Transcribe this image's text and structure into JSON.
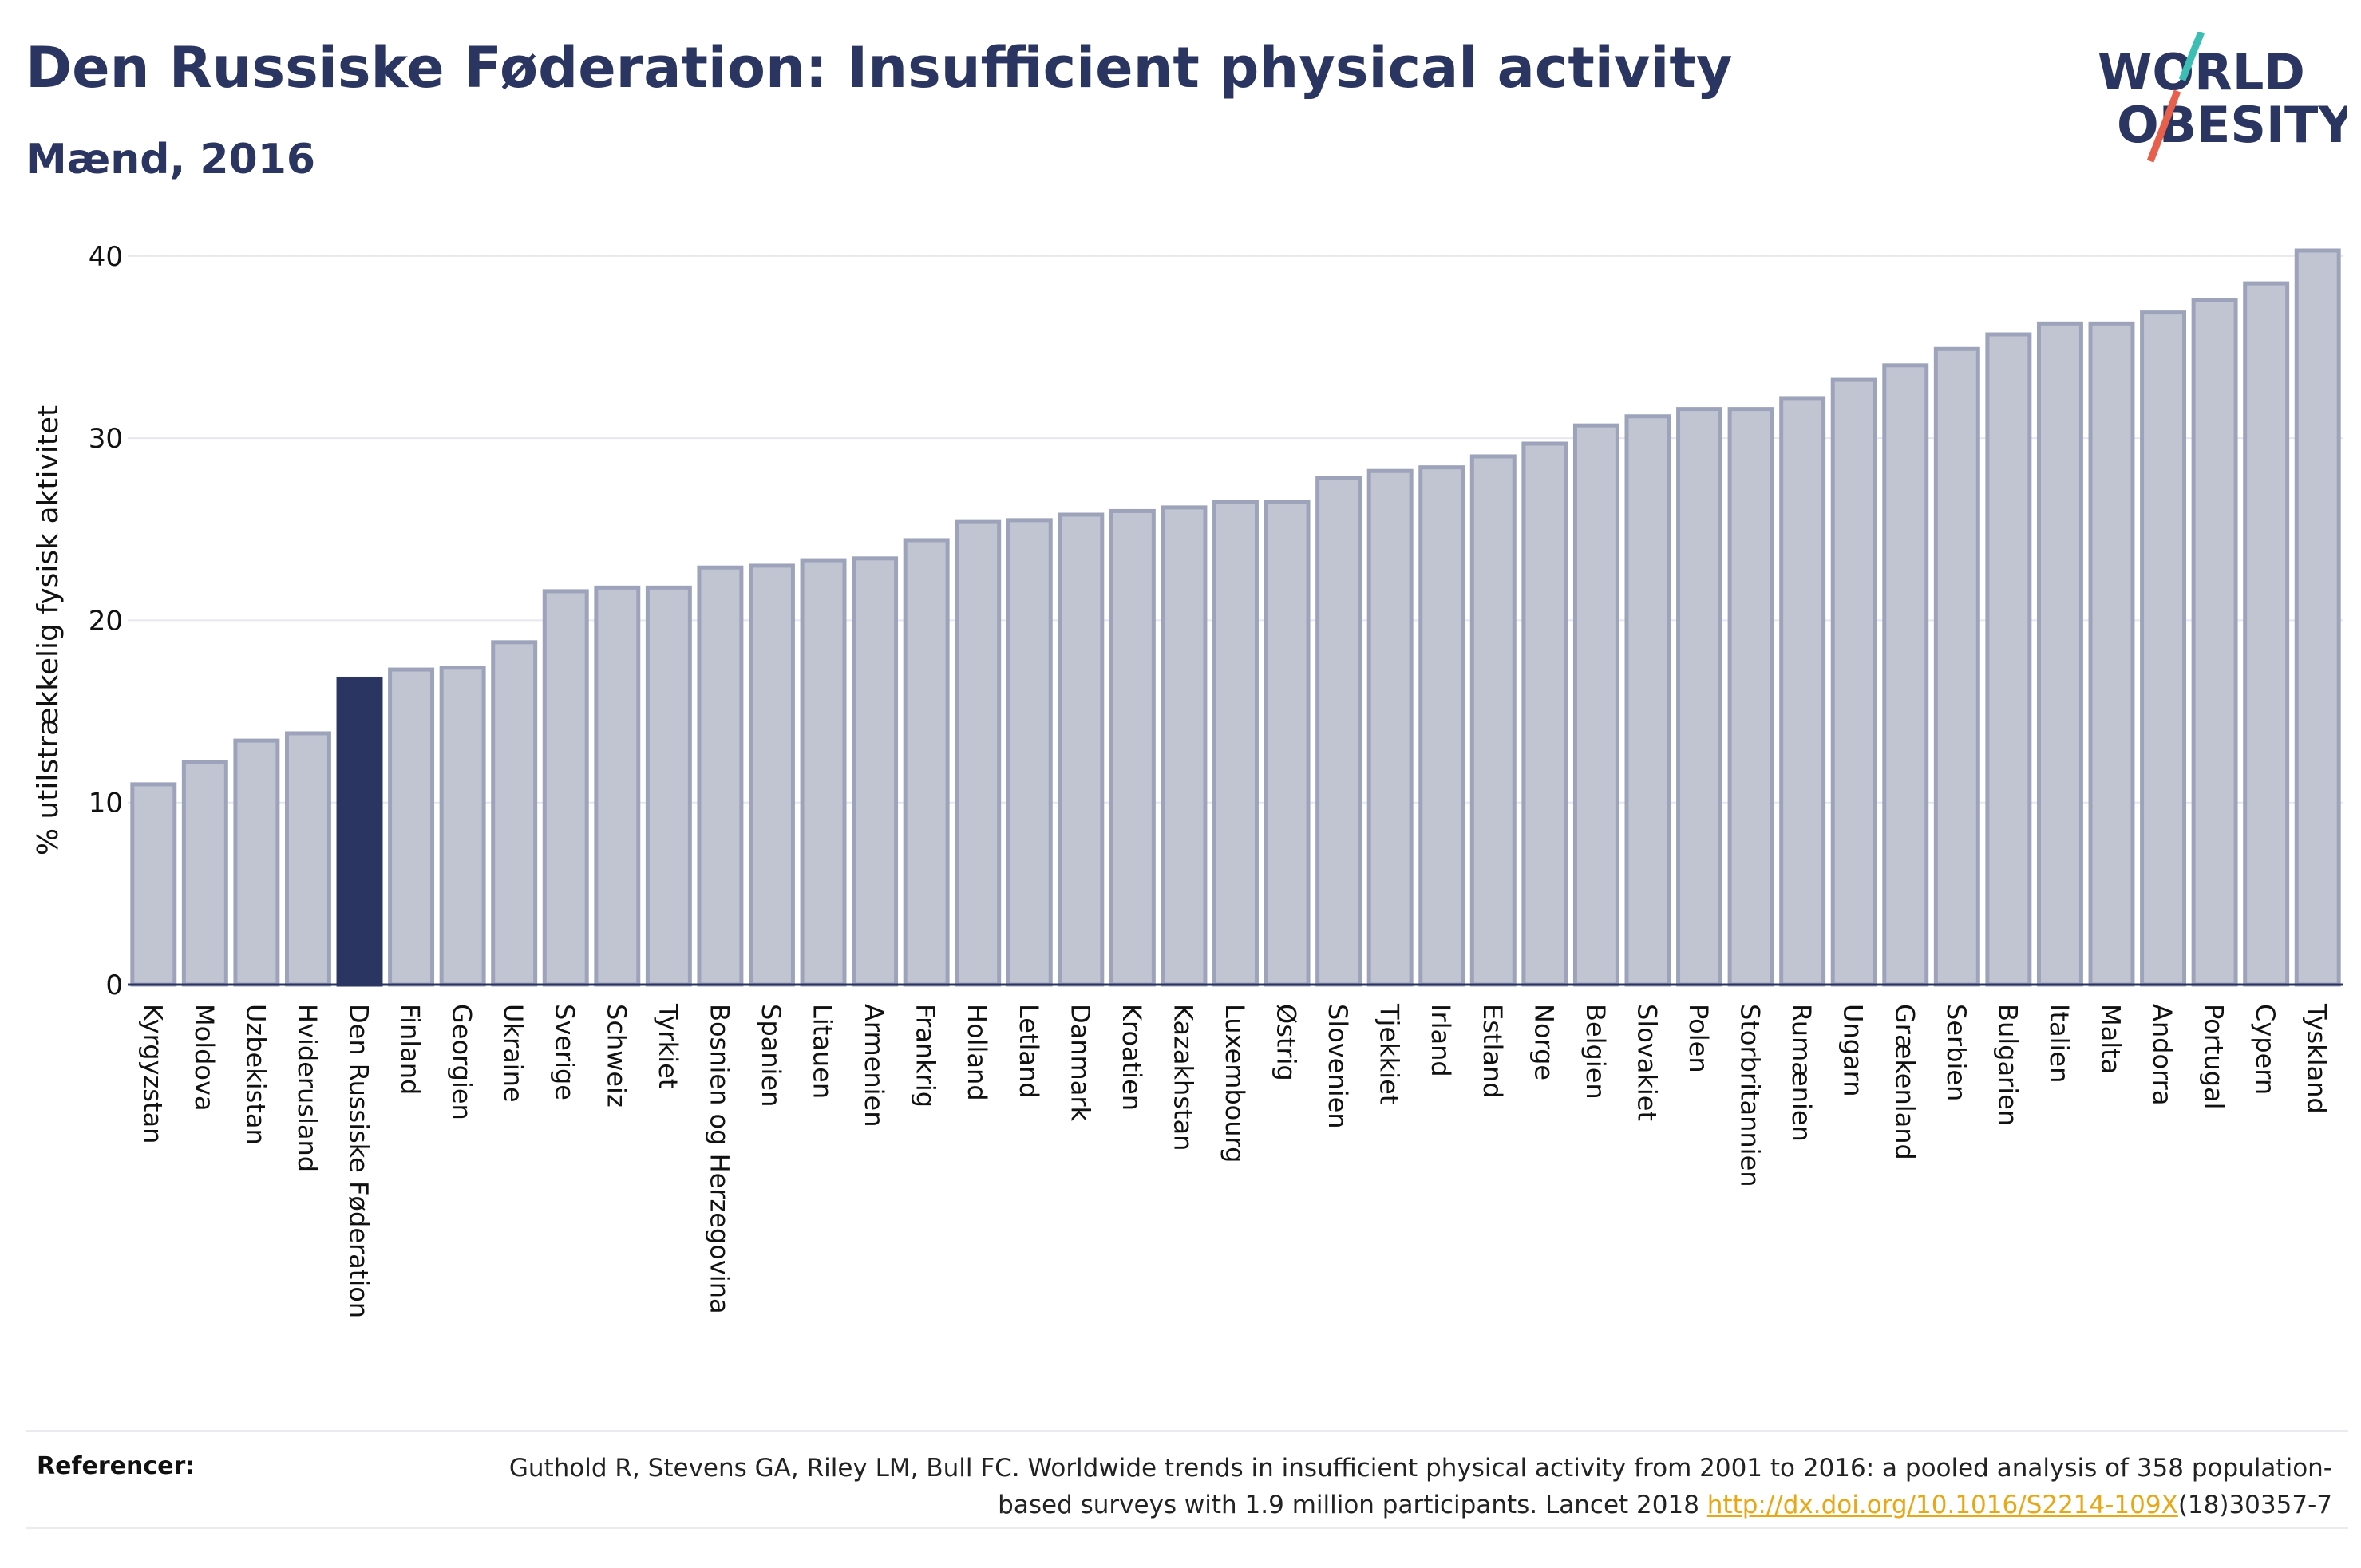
{
  "header": {
    "title": "Den Russiske Føderation: Insufficient physical activity",
    "subtitle": "Mænd, 2016"
  },
  "logo": {
    "line1": "WORLD",
    "line2": "OBESITY"
  },
  "colors": {
    "highlight": "#2a3561",
    "bar_fill": "#c1c5d2",
    "bar_stroke": "#9da3ba",
    "link": "#e8a713",
    "logo_teal": "#3bbfb5",
    "logo_red": "#e8604c"
  },
  "chart_data": {
    "type": "bar",
    "ylabel": "% utilstrækkelig fysisk aktivitet",
    "ylim": [
      0,
      40.5
    ],
    "yticks": [
      0,
      10,
      20,
      30,
      40
    ],
    "grid": true,
    "highlight_category": "Den Russiske Føderation",
    "categories": [
      "Kyrgyzstan",
      "Moldova",
      "Uzbekistan",
      "Hviderusland",
      "Den Russiske Føderation",
      "Finland",
      "Georgien",
      "Ukraine",
      "Sverige",
      "Schweiz",
      "Tyrkiet",
      "Bosnien og Herzegovina",
      "Spanien",
      "Litauen",
      "Armenien",
      "Frankrig",
      "Holland",
      "Letland",
      "Danmark",
      "Kroatien",
      "Kazakhstan",
      "Luxembourg",
      "Østrig",
      "Slovenien",
      "Tjekkiet",
      "Irland",
      "Estland",
      "Norge",
      "Belgien",
      "Slovakiet",
      "Polen",
      "Storbritannien",
      "Rumænien",
      "Ungarn",
      "Grækenland",
      "Serbien",
      "Bulgarien",
      "Italien",
      "Malta",
      "Andorra",
      "Portugal",
      "Cypern",
      "Tyskland"
    ],
    "values": [
      11.0,
      12.2,
      13.4,
      13.8,
      16.8,
      17.3,
      17.4,
      18.8,
      21.6,
      21.8,
      21.8,
      22.9,
      23.0,
      23.3,
      23.4,
      24.4,
      25.4,
      25.5,
      25.8,
      26.0,
      26.2,
      26.5,
      26.5,
      27.8,
      28.2,
      28.4,
      29.0,
      29.7,
      30.7,
      31.2,
      31.6,
      31.6,
      32.2,
      33.2,
      34.0,
      34.9,
      35.7,
      36.3,
      36.3,
      36.9,
      37.6,
      38.5,
      40.3
    ]
  },
  "references": {
    "label": "Referencer:",
    "text_before_link": "Guthold R, Stevens GA, Riley LM, Bull FC. Worldwide trends in insufficient physical activity from 2001 to 2016: a pooled analysis of 358 population-based surveys with 1.9 million participants. Lancet 2018 ",
    "link_text": "http://dx.doi.org/10.1016/S2214-109X",
    "text_after_link": "(18)30357-7"
  }
}
